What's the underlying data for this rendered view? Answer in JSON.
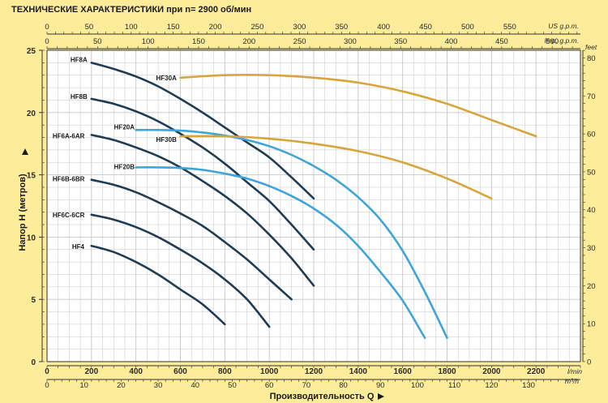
{
  "title": "ТЕХНИЧЕСКИЕ ХАРАКТЕРИСТИКИ при n= 2900 об/мин",
  "colors": {
    "background": "#fdec9a",
    "plot_background": "#ffffff",
    "grid": "#c7c7c7",
    "dark_curves": "#1f3c55",
    "blue_curves": "#3ea4d9",
    "gold_curves": "#d7a63a"
  },
  "chart_data": {
    "type": "line",
    "xlabel": "Производительность  Q",
    "ylabel": "Напор  H   (метров)",
    "xlim": [
      0,
      2400
    ],
    "ylim": [
      0,
      25
    ],
    "grid": true,
    "x_unit": "l/min",
    "x_ticks": [
      0,
      200,
      400,
      600,
      800,
      1000,
      1200,
      1400,
      1600,
      1800,
      2000,
      2200
    ],
    "y_ticks": [
      0,
      5,
      10,
      15,
      20,
      25
    ],
    "top_axis_1": {
      "unit": "US g.p.m.",
      "ticks": [
        0,
        50,
        100,
        150,
        200,
        250,
        300,
        350,
        400,
        450,
        500,
        550
      ]
    },
    "top_axis_2": {
      "unit": "Imp. g.p.m.",
      "ticks": [
        0,
        50,
        100,
        150,
        200,
        250,
        300,
        350,
        400,
        450,
        500
      ]
    },
    "bottom_axis_2": {
      "unit": "m³/h",
      "ticks": [
        0,
        10,
        20,
        30,
        40,
        50,
        60,
        70,
        80,
        90,
        100,
        110,
        120,
        130
      ]
    },
    "right_axis": {
      "unit": "feet",
      "ticks": [
        0,
        10,
        20,
        30,
        40,
        50,
        60,
        70,
        80
      ]
    },
    "series": [
      {
        "name": "HF4",
        "color": "dark",
        "x": [
          200,
          300,
          400,
          500,
          600,
          700,
          800
        ],
        "y": [
          9.3,
          8.8,
          8.0,
          7.0,
          5.8,
          4.6,
          3.0
        ]
      },
      {
        "name": "HF6C-6CR",
        "color": "dark",
        "x": [
          200,
          300,
          400,
          500,
          600,
          700,
          800,
          900,
          1000
        ],
        "y": [
          11.8,
          11.4,
          10.8,
          10.0,
          9.0,
          7.9,
          6.6,
          5.0,
          2.8
        ]
      },
      {
        "name": "HF6B-6BR",
        "color": "dark",
        "x": [
          200,
          300,
          400,
          500,
          600,
          700,
          800,
          900,
          1000,
          1100
        ],
        "y": [
          14.6,
          14.2,
          13.6,
          12.8,
          11.9,
          10.9,
          9.6,
          8.2,
          6.6,
          5.0
        ]
      },
      {
        "name": "HF6A-6AR",
        "color": "dark",
        "x": [
          200,
          300,
          400,
          500,
          600,
          700,
          800,
          900,
          1000,
          1100,
          1200
        ],
        "y": [
          18.2,
          17.8,
          17.2,
          16.5,
          15.6,
          14.5,
          13.3,
          11.9,
          10.2,
          8.3,
          6.1
        ]
      },
      {
        "name": "HF8B",
        "color": "dark",
        "x": [
          200,
          300,
          400,
          500,
          600,
          700,
          800,
          900,
          1000,
          1100,
          1200
        ],
        "y": [
          21.1,
          20.7,
          20.1,
          19.3,
          18.3,
          17.2,
          15.9,
          14.4,
          12.9,
          11.0,
          9.0
        ]
      },
      {
        "name": "HF8A",
        "color": "dark",
        "x": [
          200,
          300,
          400,
          500,
          600,
          700,
          800,
          900,
          1000,
          1100,
          1200
        ],
        "y": [
          24.0,
          23.5,
          22.9,
          22.1,
          21.1,
          20.0,
          18.8,
          17.6,
          16.4,
          14.8,
          13.1
        ]
      },
      {
        "name": "HF20B",
        "color": "blue",
        "x": [
          400,
          500,
          600,
          700,
          800,
          900,
          1000,
          1100,
          1200,
          1300,
          1400,
          1500,
          1600,
          1700
        ],
        "y": [
          15.6,
          15.6,
          15.55,
          15.4,
          15.1,
          14.7,
          14.1,
          13.3,
          12.3,
          11.0,
          9.3,
          7.2,
          4.9,
          1.9
        ]
      },
      {
        "name": "HF20A",
        "color": "blue",
        "x": [
          400,
          500,
          600,
          700,
          800,
          900,
          1000,
          1100,
          1200,
          1300,
          1400,
          1500,
          1600,
          1700,
          1800
        ],
        "y": [
          18.6,
          18.6,
          18.55,
          18.4,
          18.15,
          17.8,
          17.3,
          16.6,
          15.7,
          14.6,
          13.2,
          11.4,
          8.9,
          5.6,
          1.9
        ]
      },
      {
        "name": "HF30B",
        "color": "gold",
        "x": [
          600,
          800,
          1000,
          1200,
          1400,
          1600,
          1800,
          2000
        ],
        "y": [
          18.1,
          18.1,
          17.9,
          17.5,
          16.9,
          16.0,
          14.7,
          13.1
        ]
      },
      {
        "name": "HF30A",
        "color": "gold",
        "x": [
          600,
          800,
          1000,
          1200,
          1400,
          1600,
          1800,
          2000,
          2200
        ],
        "y": [
          22.8,
          23.0,
          23.0,
          22.8,
          22.4,
          21.7,
          20.7,
          19.4,
          18.1
        ]
      }
    ]
  }
}
